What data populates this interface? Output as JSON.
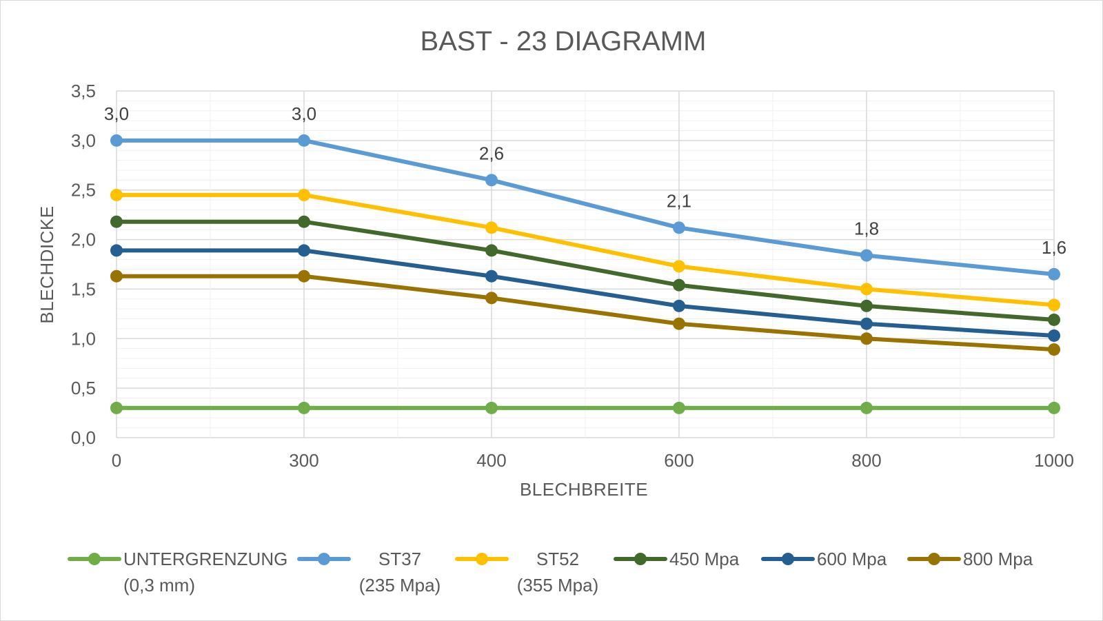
{
  "chart_data": {
    "type": "line",
    "title": "BAST - 23 DIAGRAMM",
    "xlabel": "BLECHBREITE",
    "ylabel": "BLECHDICKE",
    "categories": [
      "0",
      "300",
      "400",
      "600",
      "800",
      "1000"
    ],
    "ylim": [
      0,
      3.5
    ],
    "yticks": [
      "0,0",
      "0,5",
      "1,0",
      "1,5",
      "2,0",
      "2,5",
      "3,0",
      "3,5"
    ],
    "grid": true,
    "legend_position": "bottom",
    "series": [
      {
        "name": "UNTERGRENZUNG (0,3 mm)",
        "legend_lines": [
          "UNTERGRENZUNG",
          "(0,3 mm)"
        ],
        "color": "#70ad47",
        "values": [
          0.3,
          0.3,
          0.3,
          0.3,
          0.3,
          0.3
        ]
      },
      {
        "name": "ST37 (235 Mpa)",
        "legend_lines": [
          "ST37",
          "(235 Mpa)"
        ],
        "color": "#5b9bd5",
        "values": [
          3.0,
          3.0,
          2.6,
          2.12,
          1.84,
          1.65
        ],
        "data_labels": [
          "3,0",
          "3,0",
          "2,6",
          "2,1",
          "1,8",
          "1,6"
        ]
      },
      {
        "name": "ST52 (355 Mpa)",
        "legend_lines": [
          "ST52",
          "(355 Mpa)"
        ],
        "color": "#ffc000",
        "values": [
          2.45,
          2.45,
          2.12,
          1.73,
          1.5,
          1.34
        ]
      },
      {
        "name": "450  Mpa",
        "legend_lines": [
          "450  Mpa"
        ],
        "color": "#43682b",
        "values": [
          2.18,
          2.18,
          1.89,
          1.54,
          1.33,
          1.19
        ]
      },
      {
        "name": "600 Mpa",
        "legend_lines": [
          "600 Mpa"
        ],
        "color": "#255e91",
        "values": [
          1.89,
          1.89,
          1.63,
          1.33,
          1.15,
          1.03
        ]
      },
      {
        "name": "800 Mpa",
        "legend_lines": [
          "800 Mpa"
        ],
        "color": "#997300",
        "values": [
          1.63,
          1.63,
          1.41,
          1.15,
          1.0,
          0.89
        ]
      }
    ]
  }
}
